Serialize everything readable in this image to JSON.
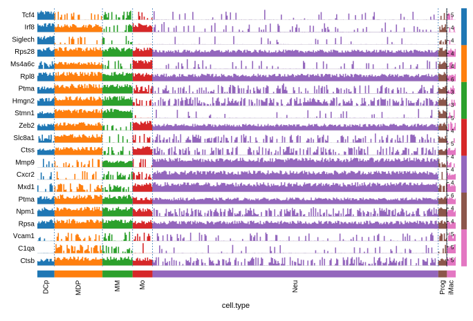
{
  "chart_data": {
    "type": "heatmap",
    "title": "",
    "xlabel": "cell.type",
    "genes": [
      "Tcf4",
      "Irf8",
      "Siglech",
      "Rps28",
      "Ms4a6c",
      "Rpl8",
      "Ptma",
      "Hmgn2",
      "Stmn1",
      "Zeb2",
      "Slc8a1",
      "Ctss",
      "Mmp9",
      "Cxcr2",
      "Mxd1",
      "Ptma",
      "Npm1",
      "Rpsa",
      "Vcam1",
      "C1qa",
      "Ctsb"
    ],
    "cell_types": [
      {
        "name": "DCp",
        "color": "#1f77b4",
        "fraction": 0.043
      },
      {
        "name": "MDP",
        "color": "#ff7f0e",
        "fraction": 0.121
      },
      {
        "name": "MM",
        "color": "#2ca02c",
        "fraction": 0.076
      },
      {
        "name": "Mo",
        "color": "#d62728",
        "fraction": 0.05
      },
      {
        "name": "Neu",
        "color": "#9467bd",
        "fraction": 0.72
      },
      {
        "name": "Prog",
        "color": "#8c564b",
        "fraction": 0.022
      },
      {
        "name": "iMac",
        "color": "#e377c2",
        "fraction": 0.022
      }
    ],
    "expression_level": [
      [
        0.9,
        0.3,
        0.35,
        0.25,
        0.08,
        0.3,
        0.3
      ],
      [
        0.9,
        0.8,
        0.25,
        0.9,
        0.15,
        0.6,
        0.4
      ],
      [
        0.85,
        0.15,
        0.15,
        0.05,
        0.04,
        0.35,
        0.25
      ],
      [
        0.95,
        0.95,
        0.95,
        0.95,
        0.7,
        0.9,
        0.8
      ],
      [
        0.6,
        0.7,
        0.2,
        0.95,
        0.1,
        0.8,
        0.6
      ],
      [
        0.95,
        0.95,
        0.95,
        0.85,
        0.75,
        0.9,
        0.8
      ],
      [
        0.7,
        0.95,
        0.95,
        0.6,
        0.35,
        0.8,
        0.6
      ],
      [
        0.8,
        0.95,
        0.95,
        0.5,
        0.55,
        0.9,
        0.5
      ],
      [
        0.7,
        0.9,
        0.95,
        0.15,
        0.08,
        0.8,
        0.3
      ],
      [
        0.7,
        0.8,
        0.2,
        0.95,
        0.65,
        0.8,
        0.6
      ],
      [
        0.6,
        0.85,
        0.1,
        0.3,
        0.35,
        0.7,
        0.4
      ],
      [
        0.7,
        0.8,
        0.2,
        0.85,
        0.4,
        0.7,
        0.7
      ],
      [
        0.3,
        0.3,
        0.7,
        0.3,
        0.95,
        0.5,
        0.6
      ],
      [
        0.2,
        0.2,
        0.5,
        0.4,
        0.9,
        0.3,
        0.7
      ],
      [
        0.3,
        0.5,
        0.6,
        0.9,
        0.95,
        0.6,
        0.9
      ],
      [
        0.8,
        0.95,
        0.95,
        0.7,
        0.65,
        0.8,
        0.8
      ],
      [
        0.9,
        0.95,
        0.95,
        0.8,
        0.55,
        0.9,
        0.7
      ],
      [
        0.95,
        0.95,
        0.95,
        0.85,
        0.8,
        0.9,
        0.8
      ],
      [
        0.2,
        0.4,
        0.3,
        0.3,
        0.15,
        0.5,
        0.6
      ],
      [
        0.1,
        0.55,
        0.3,
        0.05,
        0.1,
        0.3,
        0.9
      ],
      [
        0.7,
        0.9,
        0.9,
        0.8,
        0.45,
        0.7,
        0.9
      ]
    ],
    "legend": {
      "position": "right",
      "colors": [
        "#1f77b4",
        "#ff7f0e",
        "#2ca02c",
        "#d62728",
        "#9467bd",
        "#8c564b",
        "#e377c2"
      ],
      "tick_labels": [
        "5",
        "4",
        "4",
        "4",
        "4",
        "6",
        "3",
        "3",
        "5",
        "4",
        "5",
        "4",
        "4",
        "4",
        "6",
        "4",
        "4",
        "5",
        "5",
        "5"
      ]
    }
  }
}
